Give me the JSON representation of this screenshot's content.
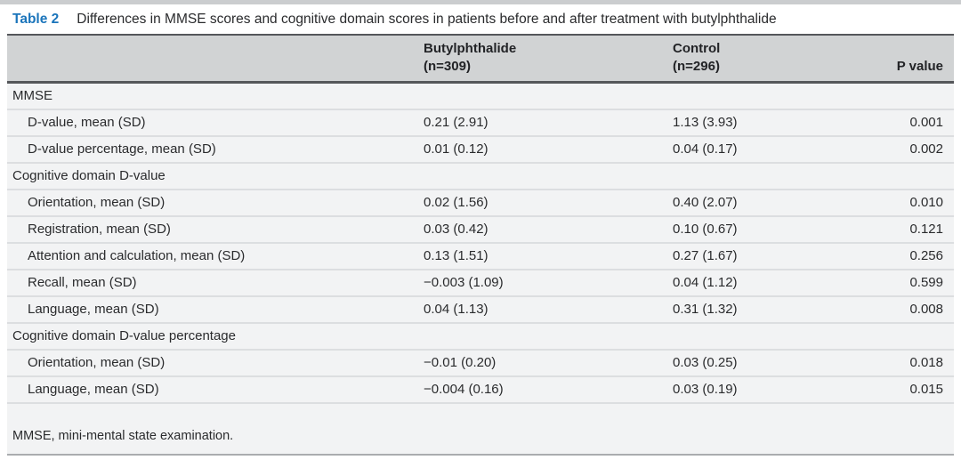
{
  "table": {
    "label": "Table 2",
    "title": "Differences in MMSE scores and cognitive domain scores in patients before and after treatment with butylphthalide",
    "header": {
      "butylphthalide_name": "Butylphthalide",
      "butylphthalide_n": "(n=309)",
      "control_name": "Control",
      "control_n": "(n=296)",
      "p_value": "P value"
    },
    "rows": [
      {
        "type": "section",
        "label": "MMSE"
      },
      {
        "type": "data",
        "label": "D-value, mean (SD)",
        "butylphthalide": "0.21 (2.91)",
        "control": "1.13 (3.93)",
        "p": "0.001"
      },
      {
        "type": "data",
        "label": "D-value percentage, mean (SD)",
        "butylphthalide": "0.01 (0.12)",
        "control": "0.04 (0.17)",
        "p": "0.002"
      },
      {
        "type": "section",
        "label": "Cognitive domain D-value"
      },
      {
        "type": "data",
        "label": "Orientation, mean (SD)",
        "butylphthalide": "0.02 (1.56)",
        "control": "0.40 (2.07)",
        "p": "0.010"
      },
      {
        "type": "data",
        "label": "Registration, mean (SD)",
        "butylphthalide": "0.03 (0.42)",
        "control": "0.10 (0.67)",
        "p": "0.121"
      },
      {
        "type": "data",
        "label": "Attention and calculation, mean (SD)",
        "butylphthalide": "0.13 (1.51)",
        "control": "0.27 (1.67)",
        "p": "0.256"
      },
      {
        "type": "data",
        "label": "Recall, mean (SD)",
        "butylphthalide": "−0.003 (1.09)",
        "control": "0.04 (1.12)",
        "p": "0.599"
      },
      {
        "type": "data",
        "label": "Language, mean (SD)",
        "butylphthalide": "0.04 (1.13)",
        "control": "0.31 (1.32)",
        "p": "0.008"
      },
      {
        "type": "section",
        "label": "Cognitive domain D-value percentage"
      },
      {
        "type": "data",
        "label": "Orientation, mean (SD)",
        "butylphthalide": "−0.01 (0.20)",
        "control": "0.03 (0.25)",
        "p": "0.018"
      },
      {
        "type": "data",
        "label": "Language, mean (SD)",
        "butylphthalide": "−0.004 (0.16)",
        "control": "0.03 (0.19)",
        "p": "0.015"
      }
    ],
    "footnote": "MMSE, mini-mental state examination."
  },
  "colors": {
    "accent": "#1b75bb",
    "header_bg": "#d1d3d4",
    "header_border": "#55575a",
    "body_bg": "#f2f3f4",
    "row_divider": "#dcdee0",
    "bottom_border": "#aaacaf",
    "top_strip": "#cbcdcf",
    "text": "#2a2b2d"
  }
}
